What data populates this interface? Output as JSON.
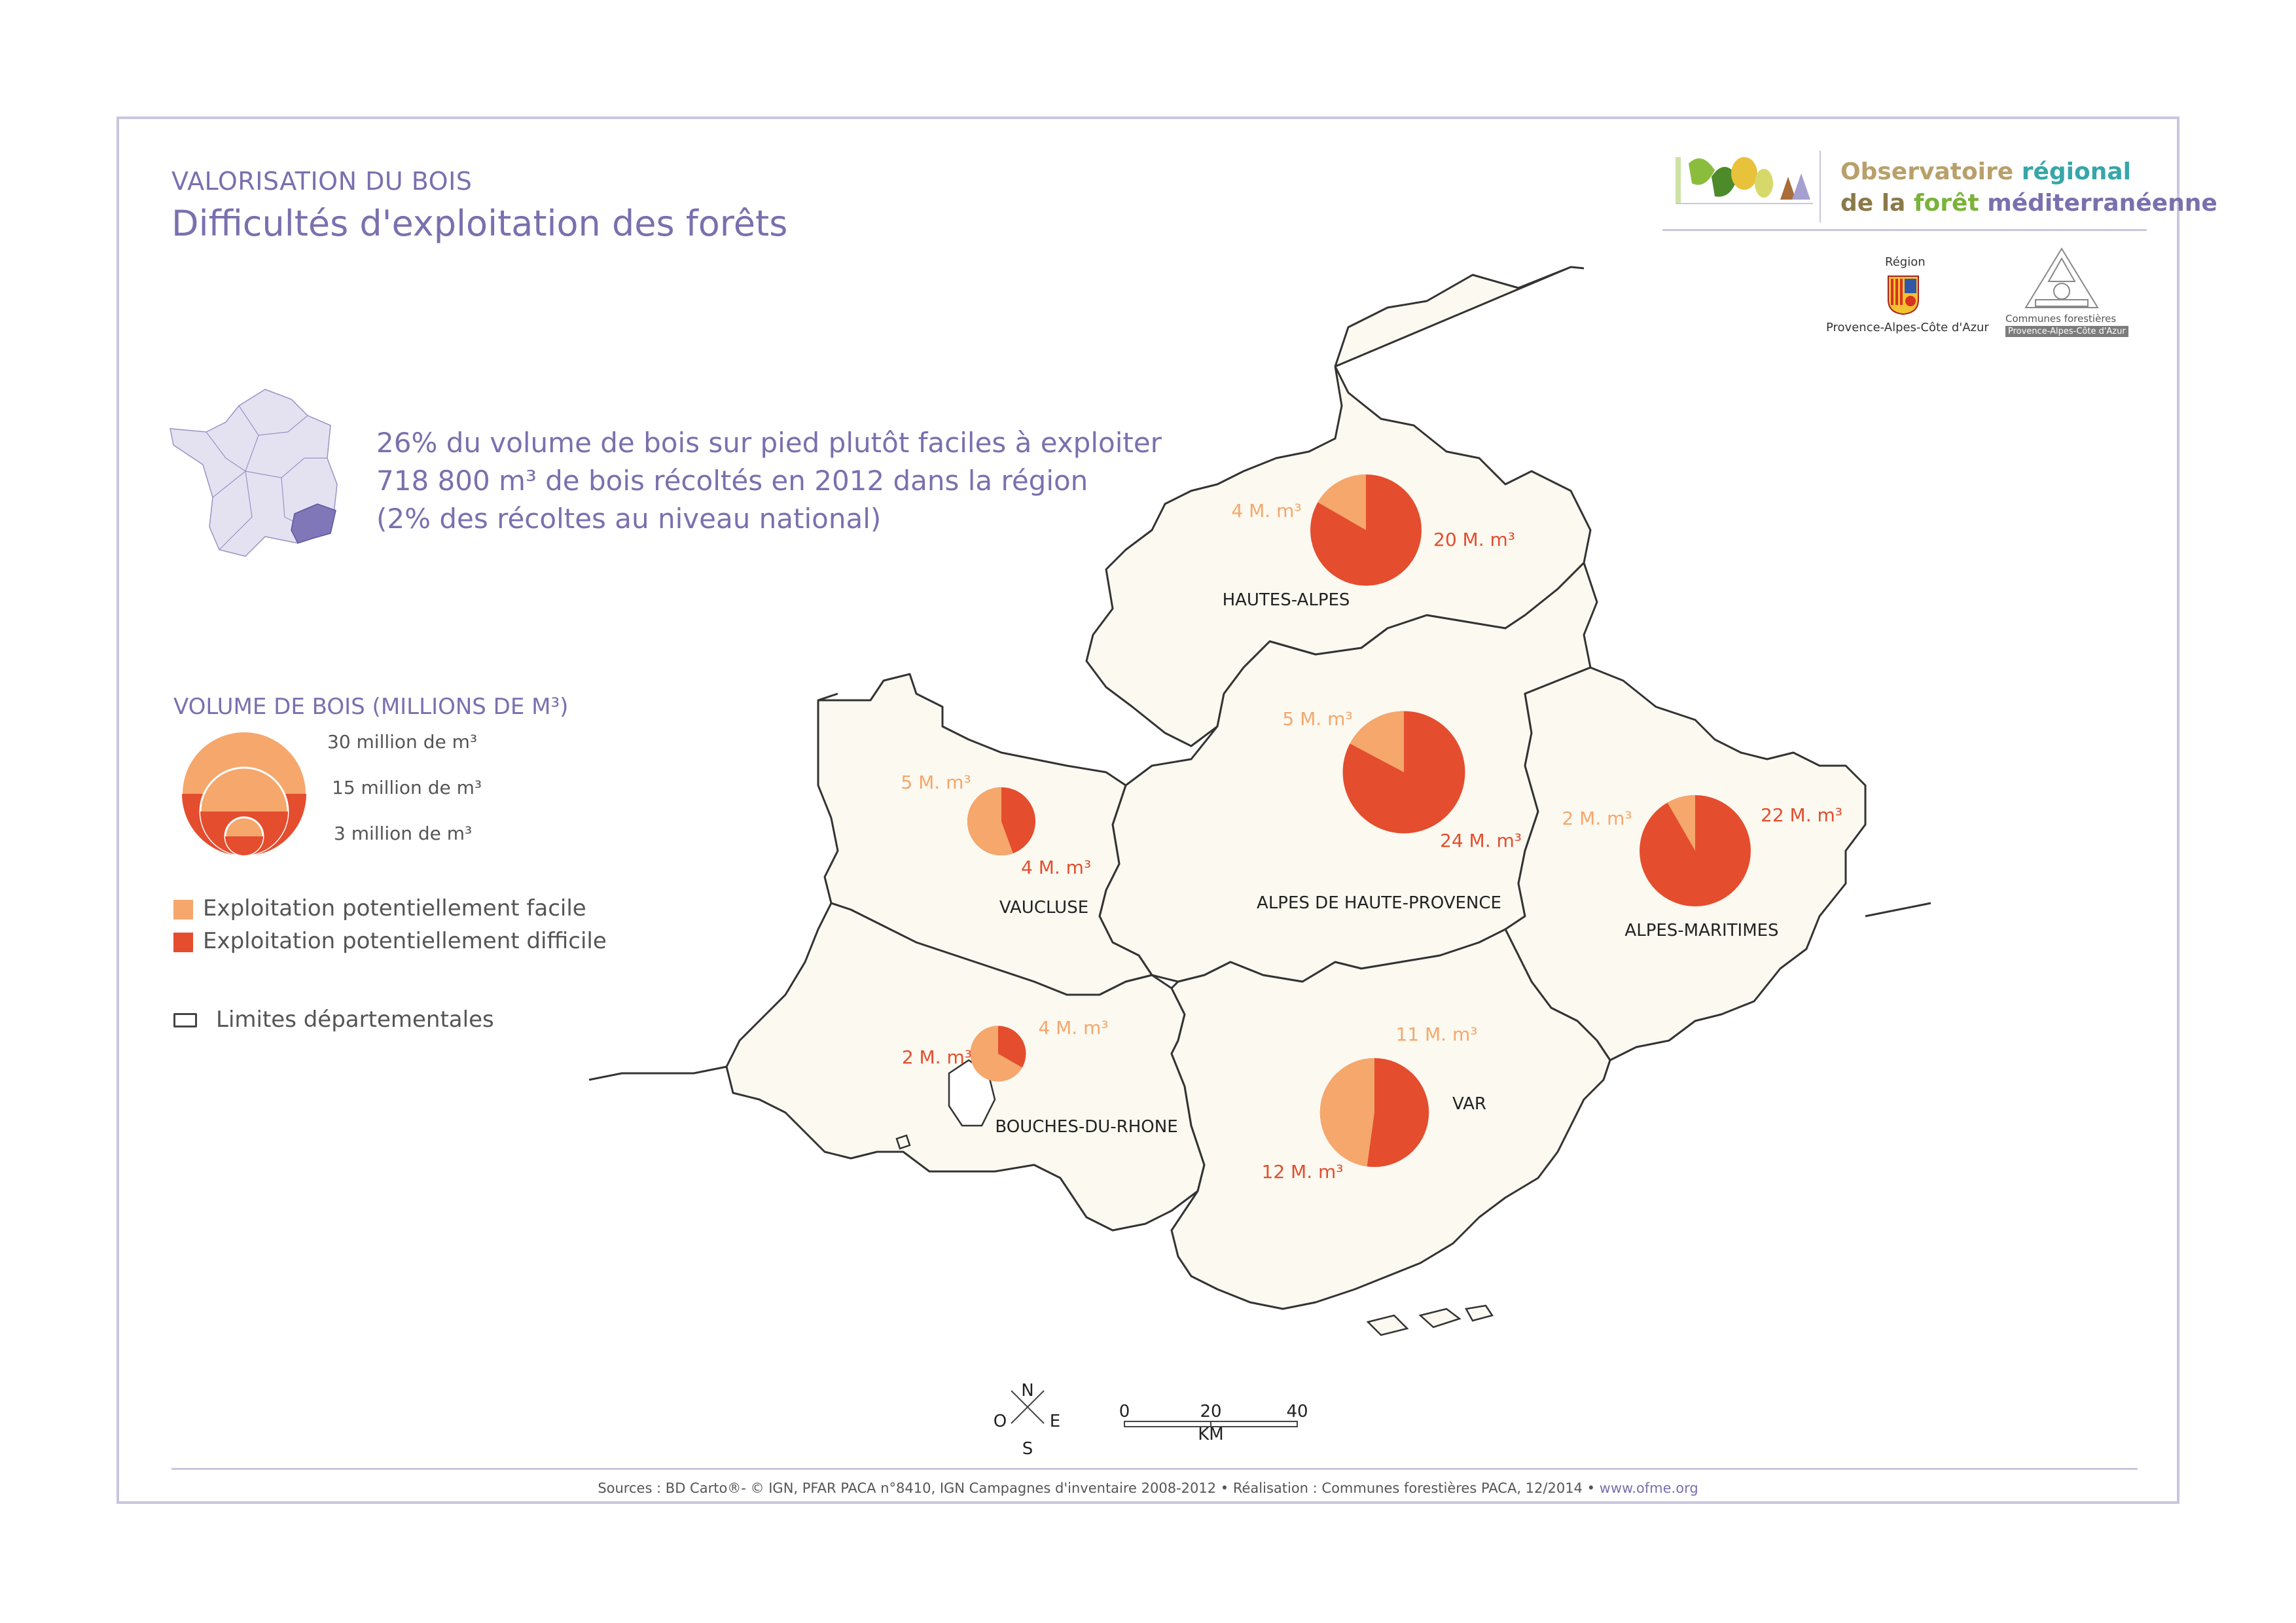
{
  "header": {
    "subtitle": "VALORISATION DU BOIS",
    "title": "Difficultés d'exploitation des forêts"
  },
  "logos": {
    "ofme_line1_a": "Observatoire ",
    "ofme_line1_b": "régional",
    "ofme_line2_a": "de la ",
    "ofme_line2_b": "forêt ",
    "ofme_line2_c": "méditerranéenne",
    "region_word": "Région",
    "region_name": "Provence-Alpes-Côte d'Azur",
    "communes_name": "Communes forestières",
    "communes_sub": "Provence-Alpes-Côte d'Azur"
  },
  "intro": {
    "line1": "26% du volume de bois sur pied plutôt faciles à exploiter",
    "line2": "718 800 m³ de bois récoltés en 2012 dans la région",
    "line3": "(2% des récoltes au niveau national)"
  },
  "legend": {
    "title": "VOLUME DE BOIS (MILLIONS DE M³)",
    "size_30": "30 million de m³",
    "size_15": "15 million de m³",
    "size_3": "3 million de m³",
    "easy": "Exploitation potentiellement facile",
    "hard": "Exploitation potentiellement difficile",
    "limits": "Limites départementales"
  },
  "colors": {
    "easy": "#f5a76c",
    "hard": "#e44d2e",
    "land": "#fbf9f0",
    "border": "#333333",
    "accent": "#7a70ae"
  },
  "departments": [
    {
      "name": "HAUTES-ALPES",
      "easy": 4,
      "hard": 20,
      "easy_label": "4 M. m³",
      "hard_label": "20 M. m³"
    },
    {
      "name": "ALPES DE HAUTE-PROVENCE",
      "easy": 5,
      "hard": 24,
      "easy_label": "5 M. m³",
      "hard_label": "24 M. m³"
    },
    {
      "name": "ALPES-MARITIMES",
      "easy": 2,
      "hard": 22,
      "easy_label": "2 M. m³",
      "hard_label": "22 M. m³"
    },
    {
      "name": "VAUCLUSE",
      "easy": 5,
      "hard": 4,
      "easy_label": "5 M. m³",
      "hard_label": "4 M. m³"
    },
    {
      "name": "BOUCHES-DU-RHONE",
      "easy": 4,
      "hard": 2,
      "easy_label": "4 M. m³",
      "hard_label": "2 M. m³"
    },
    {
      "name": "VAR",
      "easy": 11,
      "hard": 12,
      "easy_label": "11 M. m³",
      "hard_label": "12 M. m³"
    }
  ],
  "compass": {
    "n": "N",
    "s": "S",
    "e": "E",
    "o": "O"
  },
  "scale": {
    "t0": "0",
    "t20": "20",
    "t40": "40",
    "unit": "KM"
  },
  "sources": {
    "text": "Sources : BD Carto®- © IGN, PFAR PACA n°8410, IGN Campagnes d'inventaire 2008-2012 • Réalisation : Communes forestières PACA, 12/2014 • ",
    "url": "www.ofme.org"
  }
}
